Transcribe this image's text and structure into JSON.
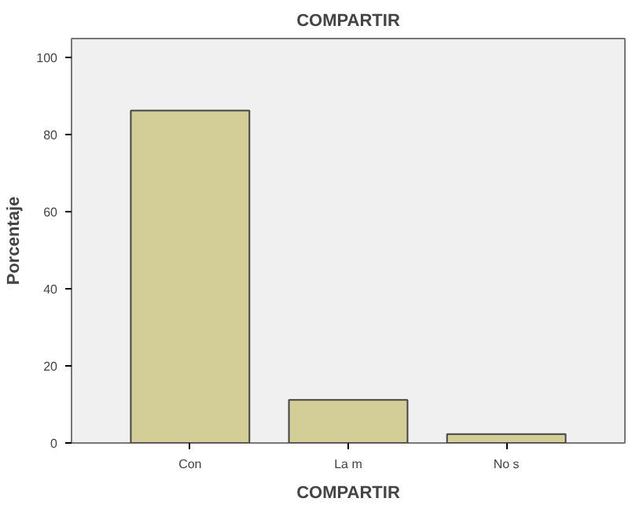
{
  "chart_data": {
    "type": "bar",
    "title": "COMPARTIR",
    "xlabel": "COMPARTIR",
    "ylabel": "Porcentaje",
    "categories": [
      "Con",
      "La m",
      "No s"
    ],
    "values": [
      86.3,
      11.2,
      2.3
    ],
    "color": "#d3ce97",
    "ylim": [
      0,
      105
    ],
    "yticks": [
      0,
      20,
      40,
      60,
      80,
      100
    ],
    "grid": false
  }
}
